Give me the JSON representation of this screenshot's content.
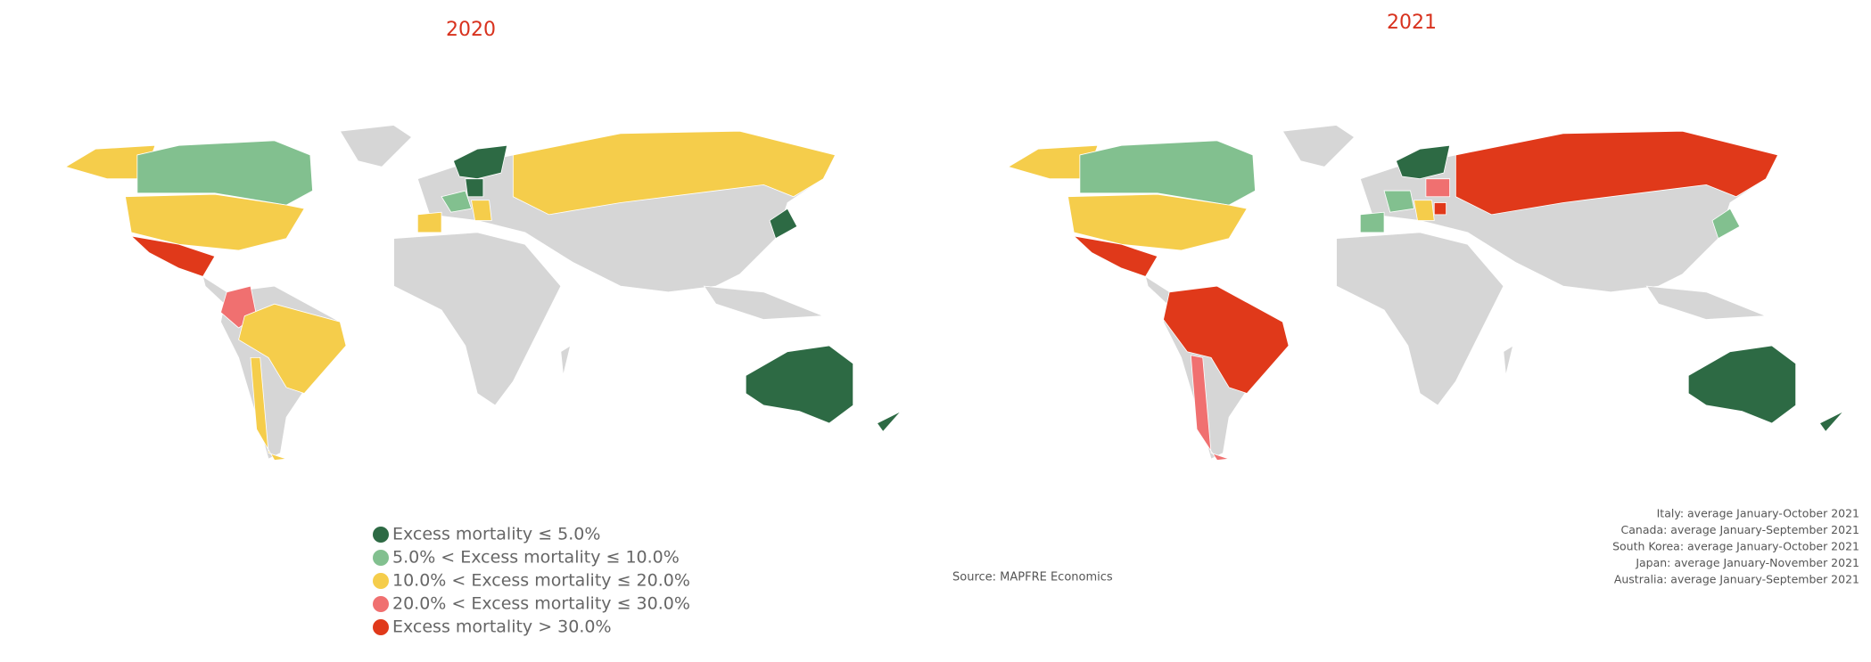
{
  "titles": [
    "2020",
    "2021"
  ],
  "legend": [
    {
      "label": "Excess mortality ≤ 5.0%",
      "color": "#2d6a44"
    },
    {
      "label": "5.0% < Excess mortality ≤ 10.0%",
      "color": "#82c08f"
    },
    {
      "label": "10.0% < Excess mortality ≤ 20.0%",
      "color": "#f5cd4b"
    },
    {
      "label": "20.0% < Excess mortality ≤ 30.0%",
      "color": "#f07070"
    },
    {
      "label": "Excess mortality > 30.0%",
      "color": "#e0391a"
    }
  ],
  "source": "Source: MAPFRE Economics",
  "notes": [
    "Italy: average January-October 2021",
    "Canada: average January-September 2021",
    "South Korea: average January-October 2021",
    "Japan: average January-November 2021",
    "Australia: average January-September 2021"
  ]
}
